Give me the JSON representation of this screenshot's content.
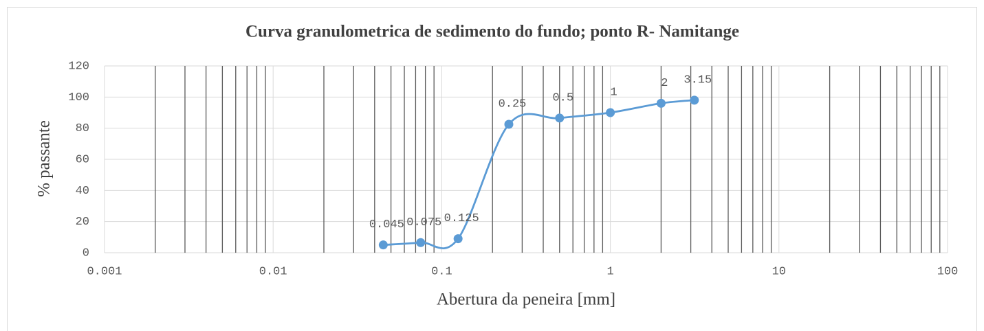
{
  "chart_data": {
    "type": "scatter",
    "title": "Curva granulometrica de sedimento do fundo; ponto R- Namitange",
    "x_label": "Abertura da peneira [mm]",
    "y_label": "% passante",
    "x_log": true,
    "smooth": true,
    "grid": true,
    "x": [
      0.045,
      0.075,
      0.125,
      0.25,
      0.5,
      1,
      2,
      3.15
    ],
    "series": [
      {
        "name": "% passante",
        "color": "#5b9bd5",
        "values": [
          5,
          6.5,
          9,
          82.5,
          86.5,
          90,
          96,
          98
        ]
      }
    ],
    "data_labels_from_x": true,
    "xlim": [
      0.001,
      100
    ],
    "xticks": [
      0.001,
      0.01,
      0.1,
      1,
      10,
      100
    ],
    "xminorticks": [
      0.002,
      0.003,
      0.004,
      0.005,
      0.006,
      0.007,
      0.008,
      0.009,
      0.02,
      0.03,
      0.04,
      0.05,
      0.06,
      0.07,
      0.08,
      0.09,
      0.2,
      0.3,
      0.4,
      0.5,
      0.6,
      0.7,
      0.8,
      0.9,
      2,
      3,
      4,
      5,
      6,
      7,
      8,
      9,
      20,
      30,
      40,
      50,
      60,
      70,
      80,
      90
    ],
    "ylim": [
      0,
      120
    ],
    "yticks": [
      0,
      20,
      40,
      60,
      80,
      100,
      120
    ]
  }
}
